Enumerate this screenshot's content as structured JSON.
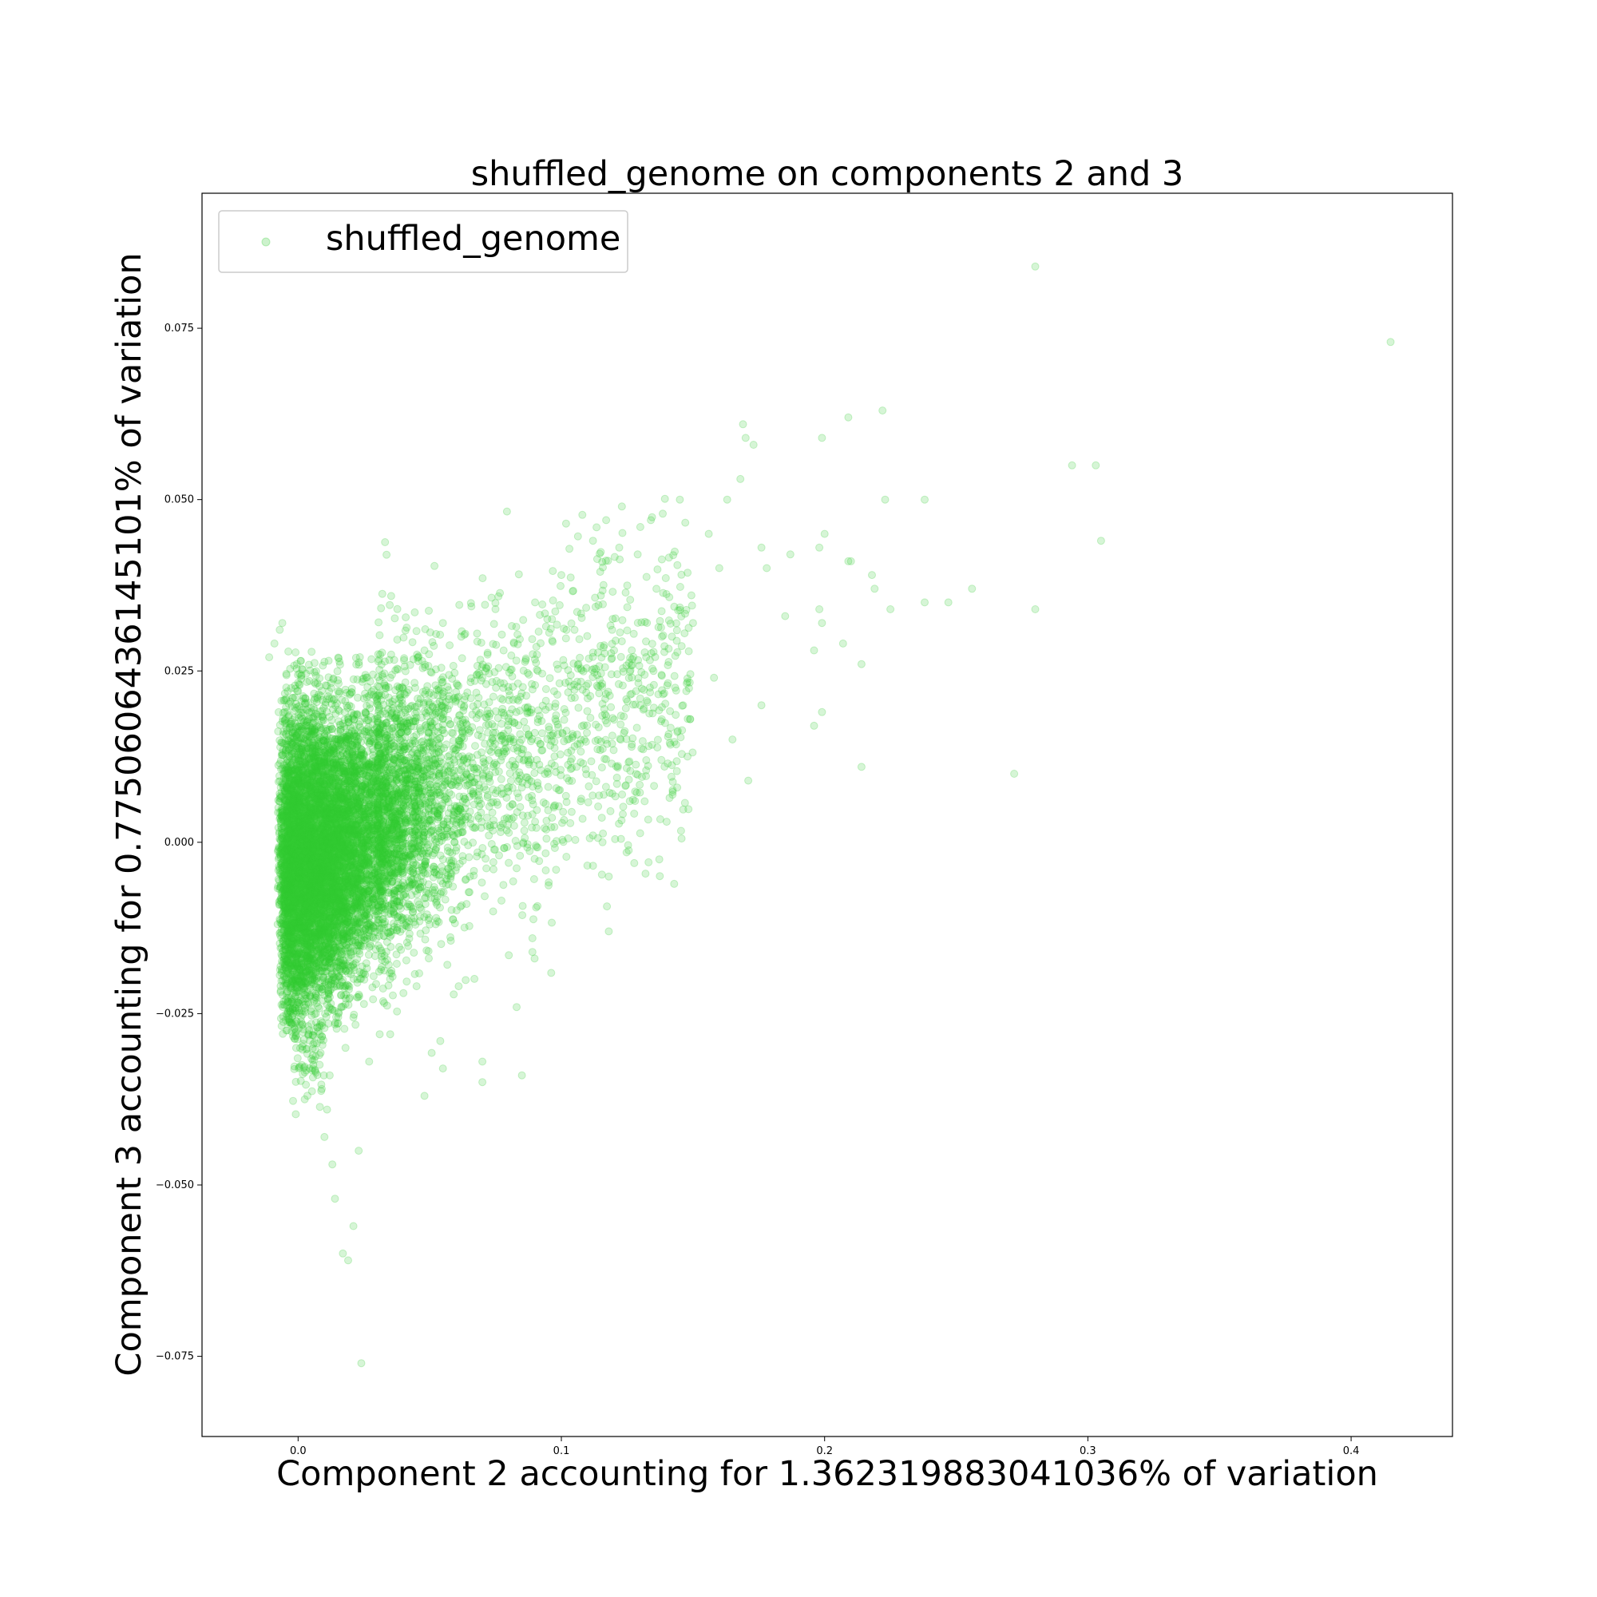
{
  "chart_data": {
    "type": "scatter",
    "title": "shuffled_genome on components 2 and 3",
    "xlabel": "Component 2 accounting for 1.362319883041036% of variation",
    "ylabel": "Component 3 accounting for 0.7750606436145101% of variation",
    "xlim": [
      -0.0365,
      0.4385
    ],
    "ylim": [
      -0.0867,
      0.0947
    ],
    "x_ticks": [
      0.0,
      0.1,
      0.2,
      0.3,
      0.4
    ],
    "x_tick_labels": [
      "0.0",
      "0.1",
      "0.2",
      "0.3",
      "0.4"
    ],
    "y_ticks": [
      -0.075,
      -0.05,
      -0.025,
      0.0,
      0.025,
      0.05,
      0.075
    ],
    "y_tick_labels": [
      "−0.075",
      "−0.050",
      "−0.025",
      "0.000",
      "0.025",
      "0.050",
      "0.075"
    ],
    "grid": false,
    "legend": {
      "position": "top-left",
      "entries": [
        "shuffled_genome"
      ]
    },
    "series": [
      {
        "name": "shuffled_genome",
        "color": "#32cd32",
        "alpha": 0.2,
        "points": [
          [
            0.28,
            0.084
          ],
          [
            0.415,
            0.073
          ],
          [
            0.222,
            0.063
          ],
          [
            0.209,
            0.062
          ],
          [
            0.169,
            0.061
          ],
          [
            0.17,
            0.059
          ],
          [
            0.199,
            0.059
          ],
          [
            0.173,
            0.058
          ],
          [
            0.303,
            0.055
          ],
          [
            0.294,
            0.055
          ],
          [
            0.168,
            0.053
          ],
          [
            0.163,
            0.05
          ],
          [
            0.145,
            0.05
          ],
          [
            0.238,
            0.05
          ],
          [
            0.223,
            0.05
          ],
          [
            0.123,
            0.049
          ],
          [
            0.134,
            0.047
          ],
          [
            0.117,
            0.047
          ],
          [
            0.13,
            0.046
          ],
          [
            0.156,
            0.045
          ],
          [
            0.2,
            0.045
          ],
          [
            0.305,
            0.044
          ],
          [
            0.112,
            0.044
          ],
          [
            0.122,
            0.043
          ],
          [
            0.176,
            0.043
          ],
          [
            0.198,
            0.043
          ],
          [
            0.129,
            0.042
          ],
          [
            0.187,
            0.042
          ],
          [
            0.21,
            0.041
          ],
          [
            0.209,
            0.041
          ],
          [
            0.178,
            0.04
          ],
          [
            0.16,
            0.04
          ],
          [
            0.1,
            0.039
          ],
          [
            0.218,
            0.039
          ],
          [
            0.219,
            0.037
          ],
          [
            0.256,
            0.037
          ],
          [
            0.247,
            0.035
          ],
          [
            0.238,
            0.035
          ],
          [
            0.225,
            0.034
          ],
          [
            0.198,
            0.034
          ],
          [
            0.28,
            0.034
          ],
          [
            0.185,
            0.033
          ],
          [
            0.15,
            0.032
          ],
          [
            0.199,
            0.032
          ],
          [
            0.207,
            0.029
          ],
          [
            0.196,
            0.028
          ],
          [
            0.214,
            0.026
          ],
          [
            0.158,
            0.024
          ],
          [
            0.199,
            0.019
          ],
          [
            0.196,
            0.017
          ],
          [
            0.176,
            0.02
          ],
          [
            0.165,
            0.015
          ],
          [
            0.214,
            0.011
          ],
          [
            0.272,
            0.01
          ],
          [
            0.171,
            0.009
          ],
          [
            0.14,
            0.003
          ],
          [
            0.118,
            -0.005
          ],
          [
            0.118,
            -0.013
          ],
          [
            0.089,
            -0.014
          ],
          [
            0.089,
            -0.016
          ],
          [
            0.061,
            -0.021
          ],
          [
            0.054,
            -0.029
          ],
          [
            0.07,
            -0.032
          ],
          [
            0.085,
            -0.034
          ],
          [
            0.07,
            -0.035
          ],
          [
            0.048,
            -0.037
          ],
          [
            0.055,
            -0.033
          ],
          [
            0.035,
            -0.028
          ],
          [
            0.023,
            -0.045
          ],
          [
            0.021,
            -0.056
          ],
          [
            0.019,
            -0.061
          ],
          [
            0.017,
            -0.06
          ],
          [
            0.024,
            -0.076
          ],
          [
            0.014,
            -0.052
          ],
          [
            0.013,
            -0.047
          ],
          [
            0.01,
            -0.043
          ],
          [
            0.011,
            -0.039
          ],
          [
            0.009,
            -0.036
          ],
          [
            0.012,
            -0.034
          ],
          [
            0.018,
            -0.03
          ],
          [
            0.027,
            -0.032
          ],
          [
            0.031,
            -0.028
          ],
          [
            0.04,
            -0.022
          ],
          [
            0.045,
            -0.021
          ],
          [
            0.064,
            -0.009
          ],
          [
            0.08,
            -0.003
          ],
          [
            0.09,
            0.003
          ],
          [
            0.095,
            0.01
          ],
          [
            0.105,
            0.014
          ],
          [
            0.11,
            0.021
          ],
          [
            0.13,
            0.02
          ],
          [
            0.138,
            0.012
          ],
          [
            0.126,
            0.006
          ],
          [
            0.112,
            0.001
          ],
          [
            0.098,
            -0.004
          ],
          [
            0.085,
            0.008
          ],
          [
            0.075,
            0.016
          ],
          [
            0.07,
            0.024
          ],
          [
            0.082,
            0.029
          ],
          [
            0.09,
            0.035
          ],
          [
            0.105,
            0.031
          ],
          [
            0.12,
            0.028
          ],
          [
            0.135,
            0.025
          ],
          [
            0.148,
            0.018
          ],
          [
            0.142,
            0.03
          ],
          [
            0.115,
            0.036
          ],
          [
            0.062,
            0.03
          ],
          [
            0.055,
            0.032
          ],
          [
            0.048,
            0.028
          ],
          [
            0.035,
            0.024
          ],
          [
            -0.006,
            0.032
          ],
          [
            -0.007,
            0.031
          ],
          [
            -0.009,
            0.029
          ],
          [
            -0.011,
            0.027
          ],
          [
            0.002,
            0.021
          ],
          [
            0.005,
            0.019
          ],
          [
            0.052,
            0.012
          ],
          [
            0.06,
            0.005
          ],
          [
            0.058,
            -0.005
          ],
          [
            0.05,
            -0.012
          ]
        ],
        "dense_cloud_description": "dense core of points spanning roughly x -0.012 to 0.06, y -0.04 to 0.027"
      }
    ]
  }
}
